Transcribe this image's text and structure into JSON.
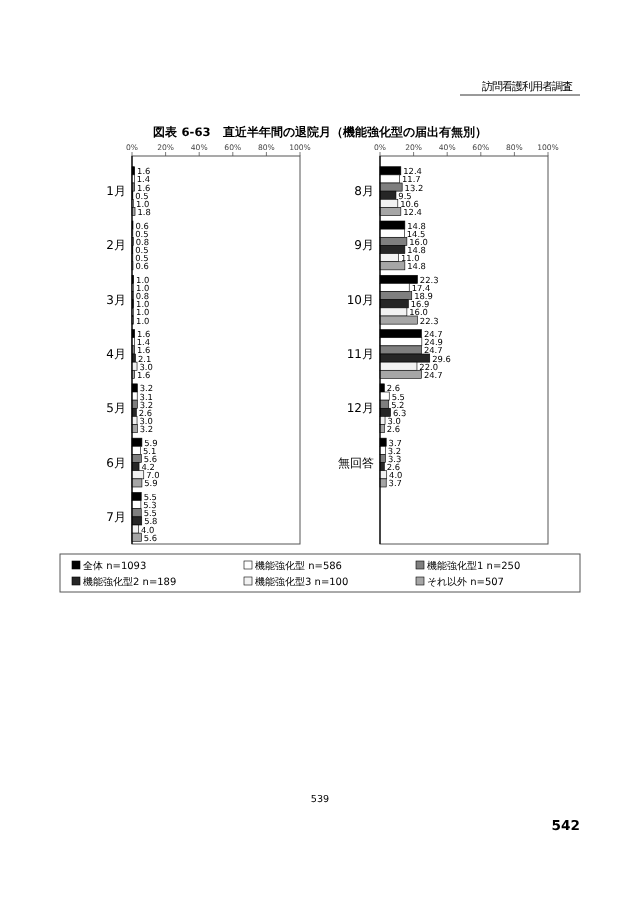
{
  "chart_data": [
    {
      "type": "bar",
      "orientation": "horizontal",
      "title": "図表 6-63　直近半年間の退院月（機能強化型の届出有無別）",
      "categories": [
        "1月",
        "2月",
        "3月",
        "4月",
        "5月",
        "6月",
        "7月"
      ],
      "series": [
        {
          "name": "全体 n=1093",
          "color": "#000000",
          "values": [
            1.6,
            0.6,
            1.0,
            1.6,
            3.2,
            5.9,
            5.5
          ],
          "value_labels": [
            "1.6",
            "0.6",
            "1.0",
            "1.6",
            "3.2",
            "5.9",
            "5.5"
          ]
        },
        {
          "name": "機能強化型 n=586",
          "color": "#ffffff",
          "values": [
            1.4,
            0.5,
            1.0,
            1.4,
            3.1,
            5.1,
            5.3
          ],
          "value_labels": [
            "1.4",
            "0.5",
            "1.0",
            "1.4",
            "3.1",
            "5.1",
            "5.3"
          ]
        },
        {
          "name": "機能強化型1 n=250",
          "color": "#7f7f7f",
          "values": [
            1.6,
            0.8,
            0.8,
            1.6,
            3.2,
            5.6,
            5.5
          ],
          "value_labels": [
            "1.6",
            "0.8",
            "0.8",
            "1.6",
            "3.2",
            "5.6",
            "5.5"
          ]
        },
        {
          "name": "機能強化型2 n=189",
          "color": "#262626",
          "values": [
            0.5,
            0.5,
            1.0,
            2.1,
            2.6,
            4.2,
            5.8
          ],
          "value_labels": [
            "0.5",
            "0.5",
            "1.0",
            "2.1",
            "2.6",
            "4.2",
            "5.8"
          ]
        },
        {
          "name": "機能強化型3 n=100",
          "color": "#f2f2f2",
          "values": [
            1.0,
            0.5,
            1.0,
            3.0,
            3.0,
            7.0,
            4.0
          ],
          "value_labels": [
            "1.0",
            "0.5",
            "1.0",
            "3.0",
            "3.0",
            "7.0",
            "4.0"
          ]
        },
        {
          "name": "それ以外 n=507",
          "color": "#a6a6a6",
          "values": [
            1.8,
            0.6,
            1.0,
            1.6,
            3.2,
            5.9,
            5.6
          ],
          "value_labels": [
            "1.8",
            "0.6",
            "1.0",
            "1.6",
            "3.2",
            "5.9",
            "5.6"
          ]
        }
      ],
      "xlim": [
        0,
        100
      ],
      "xticks": [
        {
          "value": 0,
          "label": "0%"
        },
        {
          "value": 20,
          "label": "20%"
        },
        {
          "value": 40,
          "label": "40%"
        },
        {
          "value": 60,
          "label": "60%"
        },
        {
          "value": 80,
          "label": "80%"
        },
        {
          "value": 100,
          "label": "100%"
        }
      ],
      "legend": "bottom",
      "annotations": [
        "訪問看護利用者調査",
        "539",
        "542"
      ]
    },
    {
      "type": "bar",
      "orientation": "horizontal",
      "categories": [
        "8月",
        "9月",
        "10月",
        "11月",
        "12月",
        "無回答"
      ],
      "series": [
        {
          "color": "#000000",
          "values": [
            12.4,
            14.8,
            22.3,
            24.7,
            2.6,
            3.7
          ],
          "value_labels": [
            "12.4",
            "14.8",
            "22.3",
            "24.7",
            "2.6",
            "3.7"
          ]
        },
        {
          "color": "#ffffff",
          "values": [
            11.7,
            14.5,
            17.4,
            24.9,
            5.5,
            3.2
          ],
          "value_labels": [
            "11.7",
            "14.5",
            "17.4",
            "24.9",
            "5.5",
            "3.2"
          ]
        },
        {
          "color": "#7f7f7f",
          "values": [
            13.2,
            16.0,
            18.9,
            24.7,
            5.2,
            3.3
          ],
          "value_labels": [
            "13.2",
            "16.0",
            "18.9",
            "24.7",
            "5.2",
            "3.3"
          ]
        },
        {
          "color": "#262626",
          "values": [
            9.5,
            14.8,
            16.9,
            29.6,
            6.3,
            2.6
          ],
          "value_labels": [
            "9.5",
            "14.8",
            "16.9",
            "29.6",
            "6.3",
            "2.6"
          ]
        },
        {
          "color": "#f2f2f2",
          "values": [
            10.6,
            11.0,
            16.0,
            22.0,
            3.0,
            4.0
          ],
          "value_labels": [
            "10.6",
            "11.0",
            "16.0",
            "22.0",
            "3.0",
            "4.0"
          ]
        },
        {
          "color": "#a6a6a6",
          "values": [
            12.4,
            14.8,
            22.3,
            24.7,
            2.6,
            3.7
          ],
          "value_labels": [
            "12.4",
            "14.8",
            "22.3",
            "24.7",
            "2.6",
            "3.7"
          ]
        }
      ],
      "xlim": [
        0,
        100
      ],
      "xticks": [
        {
          "value": 0,
          "label": "0%"
        },
        {
          "value": 20,
          "label": "20%"
        },
        {
          "value": 40,
          "label": "40%"
        },
        {
          "value": 60,
          "label": "60%"
        },
        {
          "value": 80,
          "label": "80%"
        },
        {
          "value": 100,
          "label": "100%"
        }
      ]
    }
  ]
}
